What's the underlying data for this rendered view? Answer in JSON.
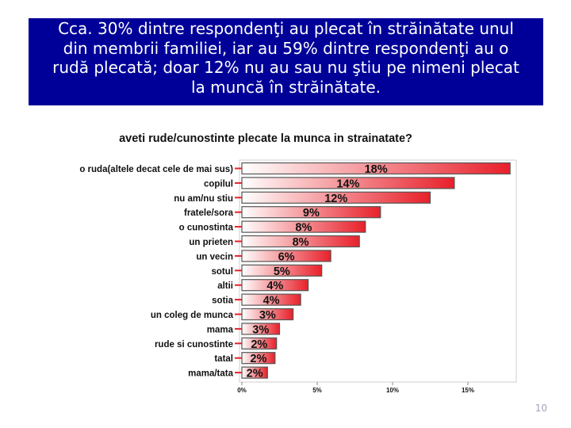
{
  "slide": {
    "header_lines": [
      "Cca. 30% dintre respondenţi au plecat în străinătate unul",
      "din membrii familiei, iar au 59% dintre respondenţi au o",
      "rudă plecată; doar 12% nu au sau nu ştiu pe nimeni plecat",
      "la muncă în străinătate."
    ],
    "slide_number": "10"
  },
  "colors": {
    "header_bg": "#000099",
    "bar_red": "#e8202a",
    "bar_light": "#ffffff"
  },
  "chart_data": {
    "type": "bar",
    "orientation": "horizontal",
    "title": "aveti rude/cunostinte plecate la munca in strainatate?",
    "categories": [
      "o ruda(altele decat cele de mai sus)",
      "copilul",
      "nu am/nu stiu",
      "fratele/sora",
      "o cunostinta",
      "un prieten",
      "un vecin",
      "sotul",
      "altii",
      "sotia",
      "un coleg de munca",
      "mama",
      "rude si cunostinte",
      "tatal",
      "mama/tata"
    ],
    "values": [
      17.8,
      14.1,
      12.5,
      9.2,
      8.2,
      7.8,
      5.9,
      5.3,
      4.4,
      3.9,
      3.4,
      2.5,
      2.3,
      2.2,
      1.7
    ],
    "labels": [
      "18%",
      "14%",
      "12%",
      "9%",
      "8%",
      "8%",
      "6%",
      "5%",
      "4%",
      "4%",
      "3%",
      "3%",
      "2%",
      "2%",
      "2%"
    ],
    "xticks": [
      "0%",
      "5%",
      "10%",
      "15%"
    ],
    "xtick_values": [
      0,
      5,
      10,
      15
    ],
    "xlim": [
      0,
      18
    ],
    "grid": false,
    "legend": "none"
  }
}
